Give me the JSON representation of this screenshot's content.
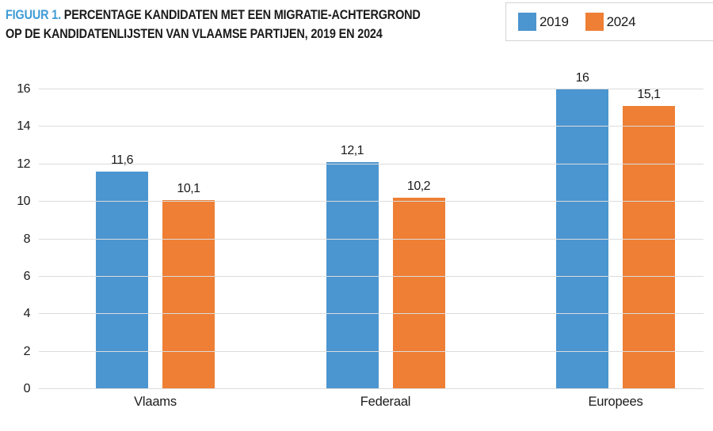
{
  "figure": {
    "label": "FIGUUR 1.",
    "title_line1": "PERCENTAGE KANDIDATEN MET EEN MIGRATIE-ACHTERGROND",
    "title_line2": "OP DE KANDIDATENLIJSTEN VAN VLAAMSE PARTIJEN, 2019 EN 2024",
    "label_color": "#3E9BD6",
    "title_color": "#1A1A1A"
  },
  "legend": {
    "border_color": "#D4D4D4",
    "position": "top-right"
  },
  "chart_data": {
    "type": "bar",
    "title": "FIGUUR 1. PERCENTAGE KANDIDATEN MET EEN MIGRATIE-ACHTERGROND OP DE KANDIDATENLIJSTEN VAN VLAAMSE PARTIJEN, 2019 EN 2024",
    "categories": [
      "Vlaams",
      "Federaal",
      "Europees"
    ],
    "series": [
      {
        "name": "2019",
        "color": "#4B95D0",
        "values": [
          11.6,
          12.1,
          16
        ],
        "labels": [
          "11,6",
          "12,1",
          "16"
        ]
      },
      {
        "name": "2024",
        "color": "#EE7F35",
        "values": [
          10.1,
          10.2,
          15.1
        ],
        "labels": [
          "10,1",
          "10,2",
          "15,1"
        ]
      }
    ],
    "ylim": [
      0,
      16
    ],
    "ytick_step": 2,
    "yticks": [
      0,
      2,
      4,
      6,
      8,
      10,
      12,
      14,
      16
    ],
    "grid": "horizontal",
    "gridline_color": "#DCDCDC",
    "legend_position": "top-right",
    "xlabel": "",
    "ylabel": ""
  }
}
